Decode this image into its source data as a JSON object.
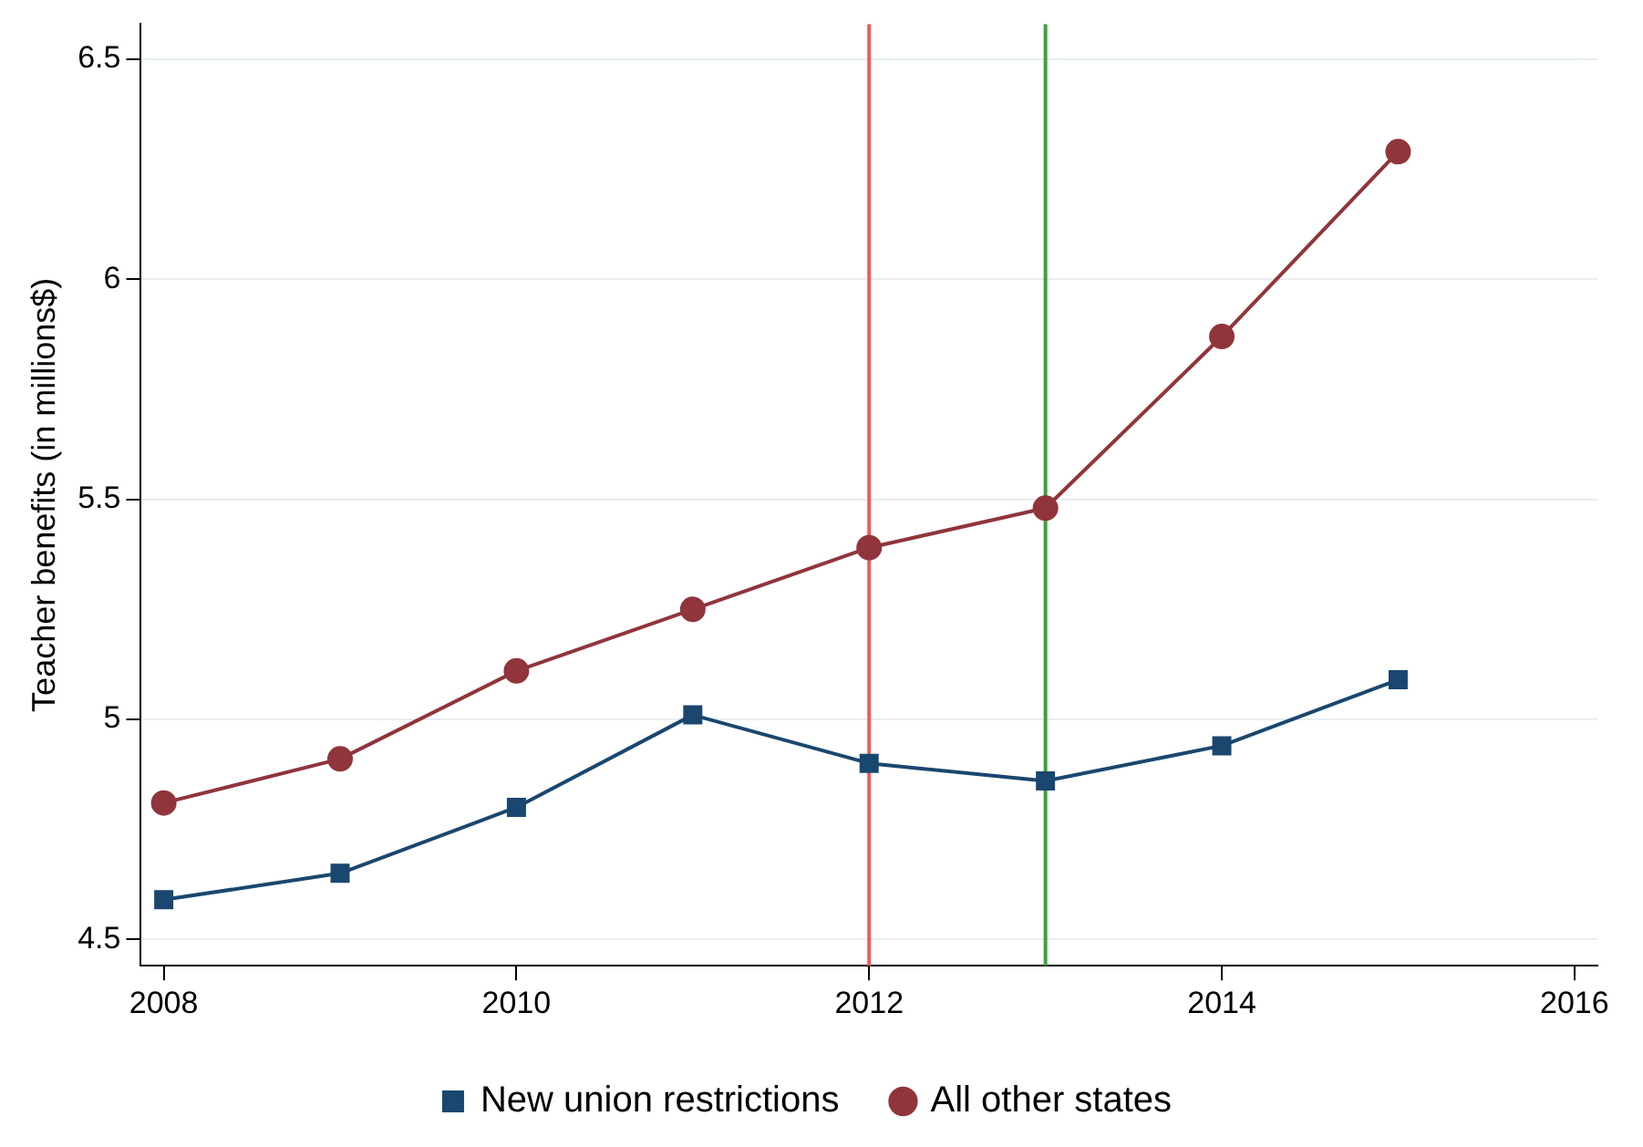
{
  "chart_data": {
    "type": "line",
    "ylabel": "Teacher benefits (in millions$)",
    "x": [
      2008,
      2009,
      2010,
      2011,
      2012,
      2013,
      2014,
      2015
    ],
    "series": [
      {
        "name": "New union restrictions",
        "color": "#1a476f",
        "marker": "square",
        "values": [
          4.59,
          4.65,
          4.8,
          5.01,
          4.9,
          4.86,
          4.94,
          5.09
        ]
      },
      {
        "name": "All other states",
        "color": "#90353b",
        "marker": "circle",
        "values": [
          4.81,
          4.91,
          5.11,
          5.25,
          5.39,
          5.48,
          5.87,
          6.29
        ]
      }
    ],
    "xlim": [
      2007.87,
      2016.13
    ],
    "xticks": [
      2008,
      2010,
      2012,
      2014,
      2016
    ],
    "ylim": [
      4.44,
      6.58
    ],
    "yticks": [
      4.5,
      5,
      5.5,
      6,
      6.5
    ],
    "ref_lines": [
      {
        "axis": "x",
        "value": 2012,
        "color": "#f05a5a"
      },
      {
        "axis": "x",
        "value": 2013,
        "color": "#3aa33a"
      }
    ],
    "grid": "y",
    "legend": "bottom",
    "line_style": "solid"
  }
}
